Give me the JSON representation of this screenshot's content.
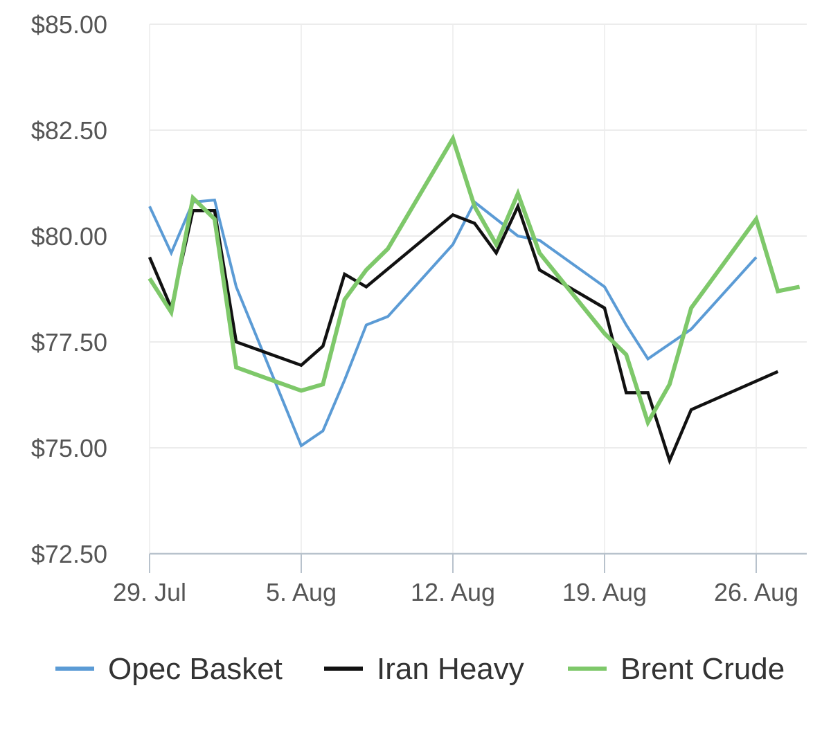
{
  "chart_data": {
    "type": "line",
    "x_range": [
      "2024-07-29",
      "2024-08-28"
    ],
    "ylim": [
      72.5,
      85.0
    ],
    "y_ticks": [
      "$85.00",
      "$82.50",
      "$80.00",
      "$77.50",
      "$75.00",
      "$72.50"
    ],
    "y_tick_values": [
      85.0,
      82.5,
      80.0,
      77.5,
      75.0,
      72.5
    ],
    "x_ticks": [
      "29. Jul",
      "5. Aug",
      "12. Aug",
      "19. Aug",
      "26. Aug"
    ],
    "x_tick_dates": [
      "2024-07-29",
      "2024-08-05",
      "2024-08-12",
      "2024-08-19",
      "2024-08-26"
    ],
    "grid": true,
    "legend": "bottom",
    "series": [
      {
        "name": "Opec Basket",
        "color": "#5b9bd5",
        "points": [
          [
            "2024-07-29",
            80.7
          ],
          [
            "2024-07-30",
            79.6
          ],
          [
            "2024-07-31",
            80.8
          ],
          [
            "2024-08-01",
            80.85
          ],
          [
            "2024-08-02",
            78.8
          ],
          [
            "2024-08-05",
            75.05
          ],
          [
            "2024-08-06",
            75.4
          ],
          [
            "2024-08-07",
            76.6
          ],
          [
            "2024-08-08",
            77.9
          ],
          [
            "2024-08-09",
            78.1
          ],
          [
            "2024-08-12",
            79.8
          ],
          [
            "2024-08-13",
            80.8
          ],
          [
            "2024-08-14",
            80.4
          ],
          [
            "2024-08-15",
            80.0
          ],
          [
            "2024-08-16",
            79.9
          ],
          [
            "2024-08-19",
            78.8
          ],
          [
            "2024-08-20",
            77.9
          ],
          [
            "2024-08-21",
            77.1
          ],
          [
            "2024-08-23",
            77.8
          ],
          [
            "2024-08-26",
            79.5
          ]
        ]
      },
      {
        "name": "Iran Heavy",
        "color": "#111111",
        "points": [
          [
            "2024-07-29",
            79.5
          ],
          [
            "2024-07-30",
            78.3
          ],
          [
            "2024-07-31",
            80.6
          ],
          [
            "2024-08-01",
            80.6
          ],
          [
            "2024-08-02",
            77.5
          ],
          [
            "2024-08-05",
            76.95
          ],
          [
            "2024-08-06",
            77.4
          ],
          [
            "2024-08-07",
            79.1
          ],
          [
            "2024-08-08",
            78.8
          ],
          [
            "2024-08-12",
            80.5
          ],
          [
            "2024-08-13",
            80.3
          ],
          [
            "2024-08-14",
            79.6
          ],
          [
            "2024-08-15",
            80.7
          ],
          [
            "2024-08-16",
            79.2
          ],
          [
            "2024-08-19",
            78.3
          ],
          [
            "2024-08-20",
            76.3
          ],
          [
            "2024-08-21",
            76.3
          ],
          [
            "2024-08-22",
            74.7
          ],
          [
            "2024-08-23",
            75.9
          ],
          [
            "2024-08-27",
            76.8
          ]
        ]
      },
      {
        "name": "Brent Crude",
        "color": "#7ec86a",
        "points": [
          [
            "2024-07-29",
            79.0
          ],
          [
            "2024-07-30",
            78.2
          ],
          [
            "2024-07-31",
            80.9
          ],
          [
            "2024-08-01",
            80.4
          ],
          [
            "2024-08-02",
            76.9
          ],
          [
            "2024-08-05",
            76.35
          ],
          [
            "2024-08-06",
            76.5
          ],
          [
            "2024-08-07",
            78.5
          ],
          [
            "2024-08-08",
            79.2
          ],
          [
            "2024-08-09",
            79.7
          ],
          [
            "2024-08-12",
            82.3
          ],
          [
            "2024-08-13",
            80.7
          ],
          [
            "2024-08-14",
            79.8
          ],
          [
            "2024-08-15",
            81.0
          ],
          [
            "2024-08-16",
            79.6
          ],
          [
            "2024-08-19",
            77.7
          ],
          [
            "2024-08-20",
            77.2
          ],
          [
            "2024-08-21",
            75.6
          ],
          [
            "2024-08-22",
            76.5
          ],
          [
            "2024-08-23",
            78.3
          ],
          [
            "2024-08-26",
            80.4
          ],
          [
            "2024-08-27",
            78.7
          ],
          [
            "2024-08-28",
            78.8
          ]
        ]
      }
    ]
  }
}
